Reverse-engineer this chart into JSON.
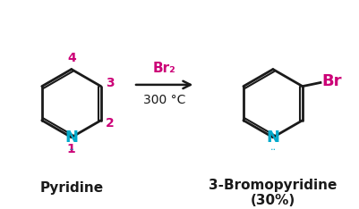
{
  "bg_color": "#ffffff",
  "bond_color": "#1a1a1a",
  "N_color": "#00aacc",
  "number_color": "#cc0077",
  "Br_color": "#cc0077",
  "arrow_color": "#1a1a1a",
  "reagent_color": "#cc0077",
  "condition_color": "#1a1a1a",
  "label_color": "#1a1a1a",
  "figsize": [
    4.02,
    2.34
  ],
  "dpi": 100,
  "pyridine_label": "Pyridine",
  "product_label": "3-Bromopyridine",
  "product_yield": "(30%)",
  "reagent": "Br₂",
  "condition": "300 °C",
  "atom_numbers": [
    "1",
    "2",
    "3",
    "4"
  ],
  "Br_label": "Br",
  "N_label": "N",
  "lone_pair": "⋅⋅"
}
